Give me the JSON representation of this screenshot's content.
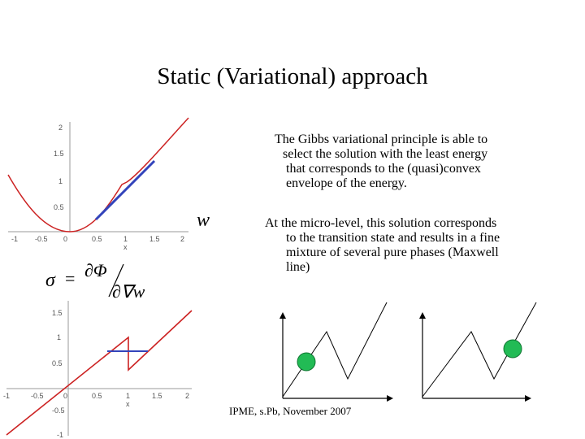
{
  "slide": {
    "title": "Static (Variational) approach",
    "paragraph1": [
      "The Gibbs variational principle is able to",
      "select the solution with the least energy",
      "that corresponds to the (quasi)convex",
      "envelope of the energy."
    ],
    "paragraph2": [
      "At the micro-level, this solution corresponds",
      "to the transition state and results in a fine",
      "mixture of several pure phases (Maxwell",
      "line)"
    ],
    "footer": "IPME, s.Pb, November 2007"
  },
  "colors": {
    "curve": "#cc2222",
    "envelope": "#3344bb",
    "dot": "#22bb55"
  },
  "chart_data": [
    {
      "type": "line",
      "xlabel": "x",
      "x_ticks": [
        "-1",
        "-0.5",
        "0",
        "0.5",
        "1",
        "1.5",
        "2"
      ],
      "y_ticks": [
        "0.5",
        "1",
        "1.5",
        "2"
      ],
      "side_label": "w",
      "series": [
        {
          "x": [
            -1.2,
            -0.8,
            -0.4,
            0,
            0.4,
            0.8,
            1.0,
            1.2,
            1.5,
            1.8,
            2.1
          ],
          "y": [
            1.4,
            0.64,
            0.16,
            0,
            0.15,
            0.75,
            1.0,
            1.1,
            1.45,
            1.8,
            2.3
          ]
        },
        {
          "x": [
            0.5,
            1.5
          ],
          "y": [
            0.2,
            1.35
          ]
        }
      ]
    },
    {
      "type": "line",
      "xlabel": "x",
      "x_ticks": [
        "-1",
        "-0.5",
        "0",
        "0.5",
        "1",
        "1.5",
        "2"
      ],
      "y_ticks": [
        "-1",
        "-0.5",
        "0.5",
        "1",
        "1.5"
      ],
      "series": [
        {
          "x": [
            -1.2,
            1.0,
            1.0,
            2.0
          ],
          "y": [
            -1.2,
            1.0,
            0.3,
            1.3
          ]
        },
        {
          "x": [
            0.75,
            1.3
          ],
          "y": [
            0.7,
            0.7
          ]
        }
      ]
    }
  ],
  "formula": {
    "sigma": "σ",
    "equals": "=",
    "numerator": "∂Φ",
    "denominator": "∂∇w"
  }
}
